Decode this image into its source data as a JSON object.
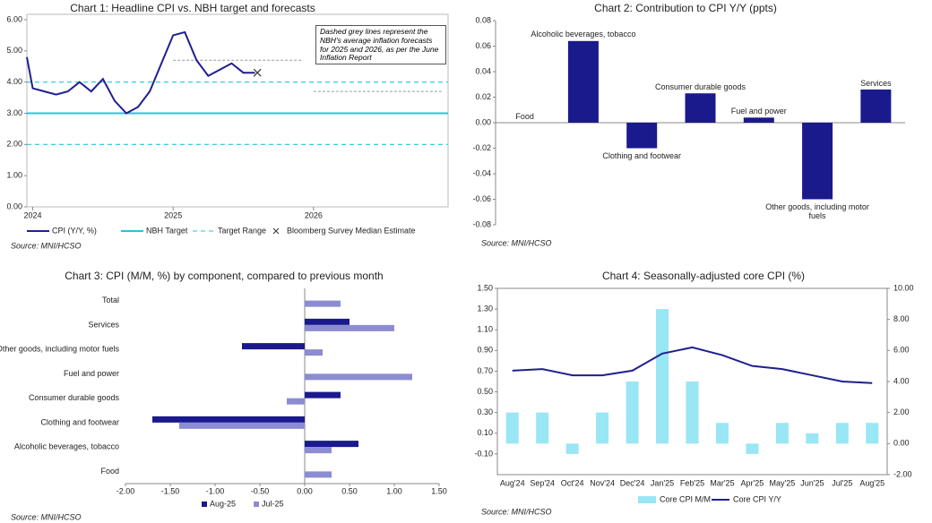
{
  "chart_data": [
    {
      "type": "line",
      "title": "Chart 1: Headline CPI vs. NBH target and forecasts",
      "annotation": "Dashed grey lines represent the NBH's average inflation forecasts for 2025 and 2026, as per the June Inflation Report",
      "x": [
        -0.5,
        0,
        1,
        2,
        3,
        4,
        5,
        6,
        7,
        8,
        9,
        10,
        11,
        12,
        13,
        14,
        15,
        16,
        17,
        18,
        19
      ],
      "series": [
        {
          "name": "CPI (Y/Y, %)",
          "color": "#1f1f8f",
          "values": [
            4.8,
            3.8,
            3.7,
            3.6,
            3.7,
            4.0,
            3.7,
            4.1,
            3.4,
            3.0,
            3.2,
            3.7,
            4.6,
            5.5,
            5.6,
            4.7,
            4.2,
            4.4,
            4.6,
            4.3,
            4.3
          ]
        }
      ],
      "target": {
        "name": "NBH Target",
        "value": 3,
        "color": "#21c4e0"
      },
      "target_range": {
        "name": "Target Range",
        "values": [
          2,
          4
        ],
        "color": "#21c4e0"
      },
      "forecasts": {
        "color": "#999999",
        "items": [
          {
            "x": [
              12,
              23
            ],
            "value": 4.7
          },
          {
            "x": [
              24,
              35
            ],
            "value": 3.7
          }
        ]
      },
      "estimate": {
        "name": "Bloomberg Survey Median Estimate",
        "x": 19.2,
        "value": 4.3,
        "color": "#333333"
      },
      "xlim": [
        -0.5,
        35.5
      ],
      "xticks": [
        {
          "value": 0,
          "label": "2024"
        },
        {
          "value": 12,
          "label": "2025"
        },
        {
          "value": 24,
          "label": "2026"
        }
      ],
      "ylim": [
        0,
        6
      ],
      "yticks": [
        {
          "value": 0,
          "label": "0.00"
        },
        {
          "value": 1,
          "label": "1.00"
        },
        {
          "value": 2,
          "label": "2.00"
        },
        {
          "value": 3,
          "label": "3.00"
        },
        {
          "value": 4,
          "label": "4.00"
        },
        {
          "value": 5,
          "label": "5.00"
        },
        {
          "value": 6,
          "label": "6.00"
        }
      ],
      "source": "Source: MNI/HCSO"
    },
    {
      "type": "bar",
      "title": "Chart 2: Contribution to CPI Y/Y (ppts)",
      "categories": [
        "Food",
        "Alcoholic beverages, tobacco",
        "Clothing and footwear",
        "Consumer durable goods",
        "Fuel and power",
        "Other goods, including motor fuels",
        "Services"
      ],
      "values": [
        0,
        0.064,
        -0.02,
        0.023,
        0.004,
        -0.06,
        0.026
      ],
      "color": "#1a1a8c",
      "ylim": [
        -0.08,
        0.08
      ],
      "yticks": [
        {
          "value": -0.08,
          "label": "-0.08"
        },
        {
          "value": -0.06,
          "label": "-0.06"
        },
        {
          "value": -0.04,
          "label": "-0.04"
        },
        {
          "value": -0.02,
          "label": "-0.02"
        },
        {
          "value": 0,
          "label": "0.00"
        },
        {
          "value": 0.02,
          "label": "0.02"
        },
        {
          "value": 0.04,
          "label": "0.04"
        },
        {
          "value": 0.06,
          "label": "0.06"
        },
        {
          "value": 0.08,
          "label": "0.08"
        }
      ],
      "source": "Source: MNI/HCSO"
    },
    {
      "type": "hbar",
      "title": "Chart 3: CPI (M/M, %) by component, compared to previous month",
      "categories": [
        "Total",
        "Services",
        "Other goods, including motor fuels",
        "Fuel and power",
        "Consumer durable goods",
        "Clothing and footwear",
        "Alcoholic beverages, tobacco",
        "Food"
      ],
      "series": [
        {
          "name": "Aug-25",
          "color": "#1a1a8c",
          "values": [
            0,
            0.5,
            -0.7,
            0,
            0.4,
            -1.7,
            0.6,
            0
          ]
        },
        {
          "name": "Jul-25",
          "color": "#8c8cd2",
          "values": [
            0.4,
            1.0,
            0.2,
            1.2,
            -0.2,
            -1.4,
            0.3,
            0.3
          ]
        }
      ],
      "xlim": [
        -2,
        1.5
      ],
      "xticks": [
        {
          "value": -2,
          "label": "-2.00"
        },
        {
          "value": -1.5,
          "label": "-1.50"
        },
        {
          "value": -1,
          "label": "-1.00"
        },
        {
          "value": -0.5,
          "label": "-0.50"
        },
        {
          "value": 0,
          "label": "0.00"
        },
        {
          "value": 0.5,
          "label": "0.50"
        },
        {
          "value": 1,
          "label": "1.00"
        },
        {
          "value": 1.5,
          "label": "1.50"
        }
      ],
      "source": "Source: MNI/HCSO"
    },
    {
      "type": "combo",
      "title": "Chart 4: Seasonally-adjusted core CPI (%)",
      "categories": [
        "Aug'24",
        "Sep'24",
        "Oct'24",
        "Nov'24",
        "Dec'24",
        "Jan'25",
        "Feb'25",
        "Mar'25",
        "Apr'25",
        "May'25",
        "Jun'25",
        "Jul'25",
        "Aug'25"
      ],
      "series": [
        {
          "name": "Core CPI M/M",
          "color": "#99e6f5",
          "values": [
            0.3,
            0.3,
            -0.1,
            0.3,
            0.6,
            1.3,
            0.6,
            0.2,
            -0.1,
            0.2,
            0.1,
            0.2,
            0.2
          ]
        },
        {
          "name": "Core CPI Y/Y",
          "color": "#1f1f8f",
          "axis": "y2",
          "values": [
            4.7,
            4.8,
            4.4,
            4.4,
            4.7,
            5.8,
            6.2,
            5.7,
            5.0,
            4.8,
            4.4,
            4.0,
            3.9
          ]
        }
      ],
      "ylim": [
        -0.3,
        1.5
      ],
      "yticks": [
        {
          "value": -0.1,
          "label": "-0.10"
        },
        {
          "value": 0.1,
          "label": "0.10"
        },
        {
          "value": 0.3,
          "label": "0.30"
        },
        {
          "value": 0.5,
          "label": "0.50"
        },
        {
          "value": 0.7,
          "label": "0.70"
        },
        {
          "value": 0.9,
          "label": "0.90"
        },
        {
          "value": 1.1,
          "label": "1.10"
        },
        {
          "value": 1.3,
          "label": "1.30"
        },
        {
          "value": 1.5,
          "label": "1.50"
        }
      ],
      "y2lim": [
        -2,
        10
      ],
      "y2ticks": [
        {
          "value": -2,
          "label": "-2.00"
        },
        {
          "value": 0,
          "label": "0.00"
        },
        {
          "value": 2,
          "label": "2.00"
        },
        {
          "value": 4,
          "label": "4.00"
        },
        {
          "value": 6,
          "label": "6.00"
        },
        {
          "value": 8,
          "label": "8.00"
        },
        {
          "value": 10,
          "label": "10.00"
        }
      ],
      "source": "Source: MNI/HCSO"
    }
  ]
}
